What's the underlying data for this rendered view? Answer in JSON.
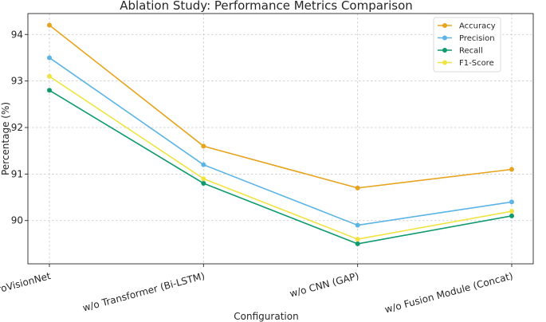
{
  "chart_data": {
    "type": "line",
    "title": "Ablation Study: Performance Metrics Comparison",
    "xlabel": "Configuration",
    "ylabel": "Percentage (%)",
    "categories": [
      "Full AgroVisionNet",
      "w/o Transformer (Bi-LSTM)",
      "w/o CNN (GAP)",
      "w/o Fusion Module (Concat)"
    ],
    "ylim": [
      89.07,
      94.45
    ],
    "yticks": [
      90,
      91,
      92,
      93,
      94
    ],
    "grid": true,
    "legend_position": "top-right",
    "series": [
      {
        "name": "Accuracy",
        "color": "#e8a31c",
        "values": [
          94.2,
          91.6,
          90.7,
          91.1
        ]
      },
      {
        "name": "Precision",
        "color": "#5ab4e5",
        "values": [
          93.5,
          91.2,
          89.9,
          90.4
        ]
      },
      {
        "name": "Recall",
        "color": "#0e9a6e",
        "values": [
          92.8,
          90.8,
          89.5,
          90.1
        ]
      },
      {
        "name": "F1-Score",
        "color": "#f0e442",
        "values": [
          93.1,
          90.9,
          89.6,
          90.2
        ]
      }
    ]
  }
}
